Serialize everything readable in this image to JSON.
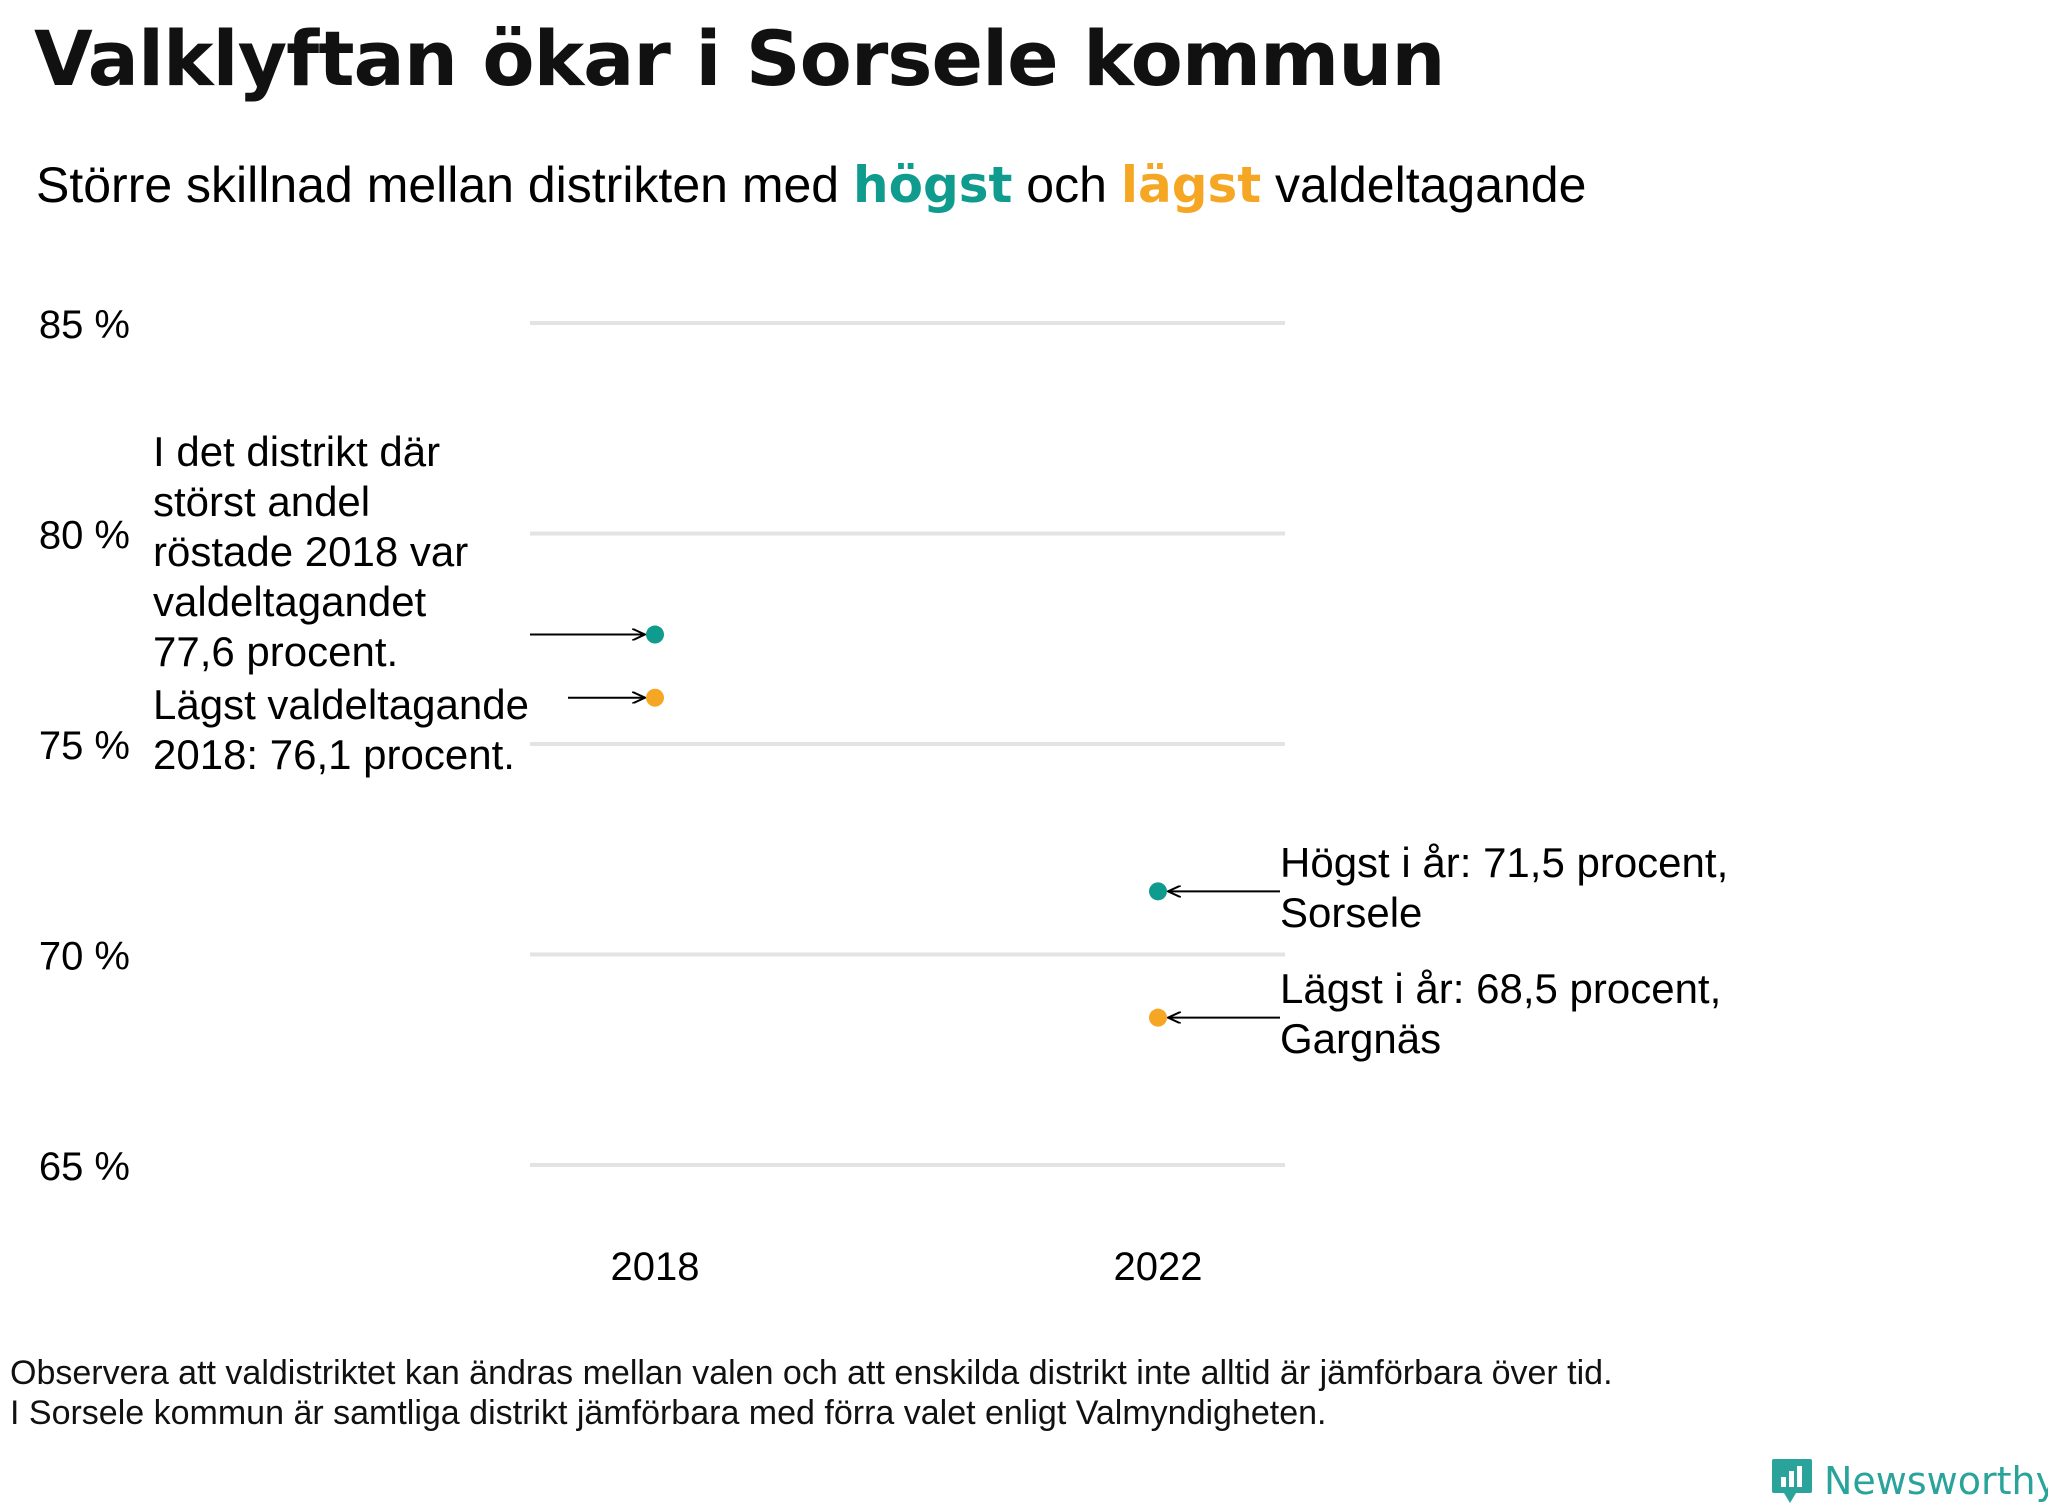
{
  "header": {
    "title": "Valklyftan ökar i Sorsele kommun",
    "subtitle_parts": {
      "pre": "Större  skillnad  mellan  distrikten   med ",
      "high": "högst",
      "mid": " och ",
      "low": "lägst",
      "post": " valdeltagande"
    }
  },
  "chart_data": {
    "type": "scatter",
    "x": [
      "2018",
      "2022"
    ],
    "series": [
      {
        "name": "högst",
        "values": [
          77.6,
          71.5
        ],
        "color": "#0f9b8e"
      },
      {
        "name": "lägst",
        "values": [
          76.1,
          68.5
        ],
        "color": "#f5a623"
      }
    ],
    "yticks": [
      85,
      80,
      75,
      70,
      65
    ],
    "ytick_labels": [
      "85 %",
      "80 %",
      "75 %",
      "70 %",
      "65 %"
    ],
    "ylim": [
      65,
      85
    ],
    "grid": true,
    "annotations": {
      "high_2018": "I det distrikt där\nstörst andel\nröstade 2018 var\nvaldeltagandet\n77,6 procent.",
      "low_2018": "Lägst valdeltagande\n2018: 76,1 procent.",
      "high_2022": "Högst i år: 71,5 procent,\nSorsele",
      "low_2022": "Lägst i år: 68,5 procent,\nGargnäs"
    }
  },
  "footer": {
    "note_line1": "Observera att valdistriktet kan ändras mellan valen och att enskilda distrikt inte alltid är jämförbara över tid.",
    "note_line2": "I Sorsele kommun är samtliga distrikt jämförbara med förra valet enligt Valmyndigheten.",
    "brand": "Newsworthy",
    "brand_icon": "bar-chart-speech-bubble-icon",
    "brand_color": "#2aa39a"
  }
}
